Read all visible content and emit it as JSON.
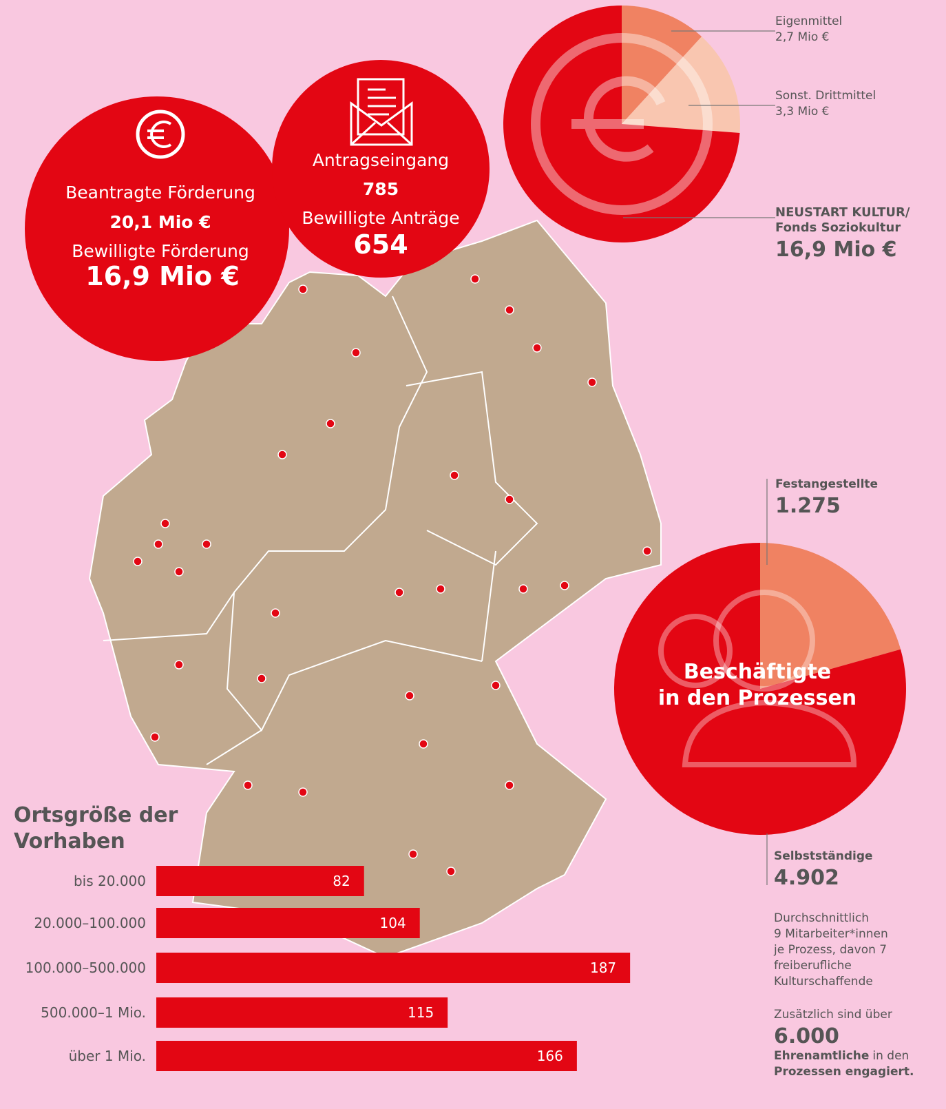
{
  "circles": {
    "funding": {
      "label_requested": "Beantragte Förderung",
      "value_requested": "20,1 Mio €",
      "label_granted": "Bewilligte Förderung",
      "value_granted": "16,9 Mio €"
    },
    "applications": {
      "label_received": "Antragseingang",
      "value_received": "785",
      "label_granted": "Bewilligte Anträge",
      "value_granted": "654"
    }
  },
  "chart_data": [
    {
      "type": "pie",
      "categories": [
        "Eigenmittel",
        "Sonst. Drittmittel",
        "NEUSTART KULTUR/ Fonds Soziokultur"
      ],
      "values": [
        2.7,
        3.3,
        16.9
      ],
      "value_labels": [
        "2,7 Mio €",
        "3,3 Mio €",
        "16,9 Mio €"
      ],
      "colors": [
        "#f08262",
        "#f9c6b0",
        "#e30613"
      ]
    },
    {
      "type": "pie",
      "title_lines": [
        "Beschäftigte",
        "in den Prozessen"
      ],
      "categories": [
        "Festangestellte",
        "Selbstständige"
      ],
      "values": [
        1275,
        4902
      ],
      "value_labels": [
        "1.275",
        "4.902"
      ],
      "colors": [
        "#f08262",
        "#e30613"
      ]
    },
    {
      "type": "hbar",
      "title_lines": [
        "Ortsgröße der",
        "Vorhaben"
      ],
      "categories": [
        "bis 20.000",
        "20.000–100.000",
        "100.000–500.000",
        "500.000–1 Mio.",
        "über 1 Mio."
      ],
      "values": [
        82,
        104,
        187,
        115,
        166
      ],
      "color": "#e30613"
    }
  ],
  "notes": {
    "average_lines": [
      "Durchschnittlich",
      "9 Mitarbeiter*innen",
      "je Prozess, davon 7",
      "freiberufliche",
      "Kulturschaffende"
    ],
    "volunteer_intro": "Zusätzlich sind über",
    "volunteer_value": "6.000",
    "volunteer_bold": "Ehrenamtliche",
    "volunteer_rest1": " in den",
    "volunteer_rest2": "Prozessen engagiert."
  }
}
